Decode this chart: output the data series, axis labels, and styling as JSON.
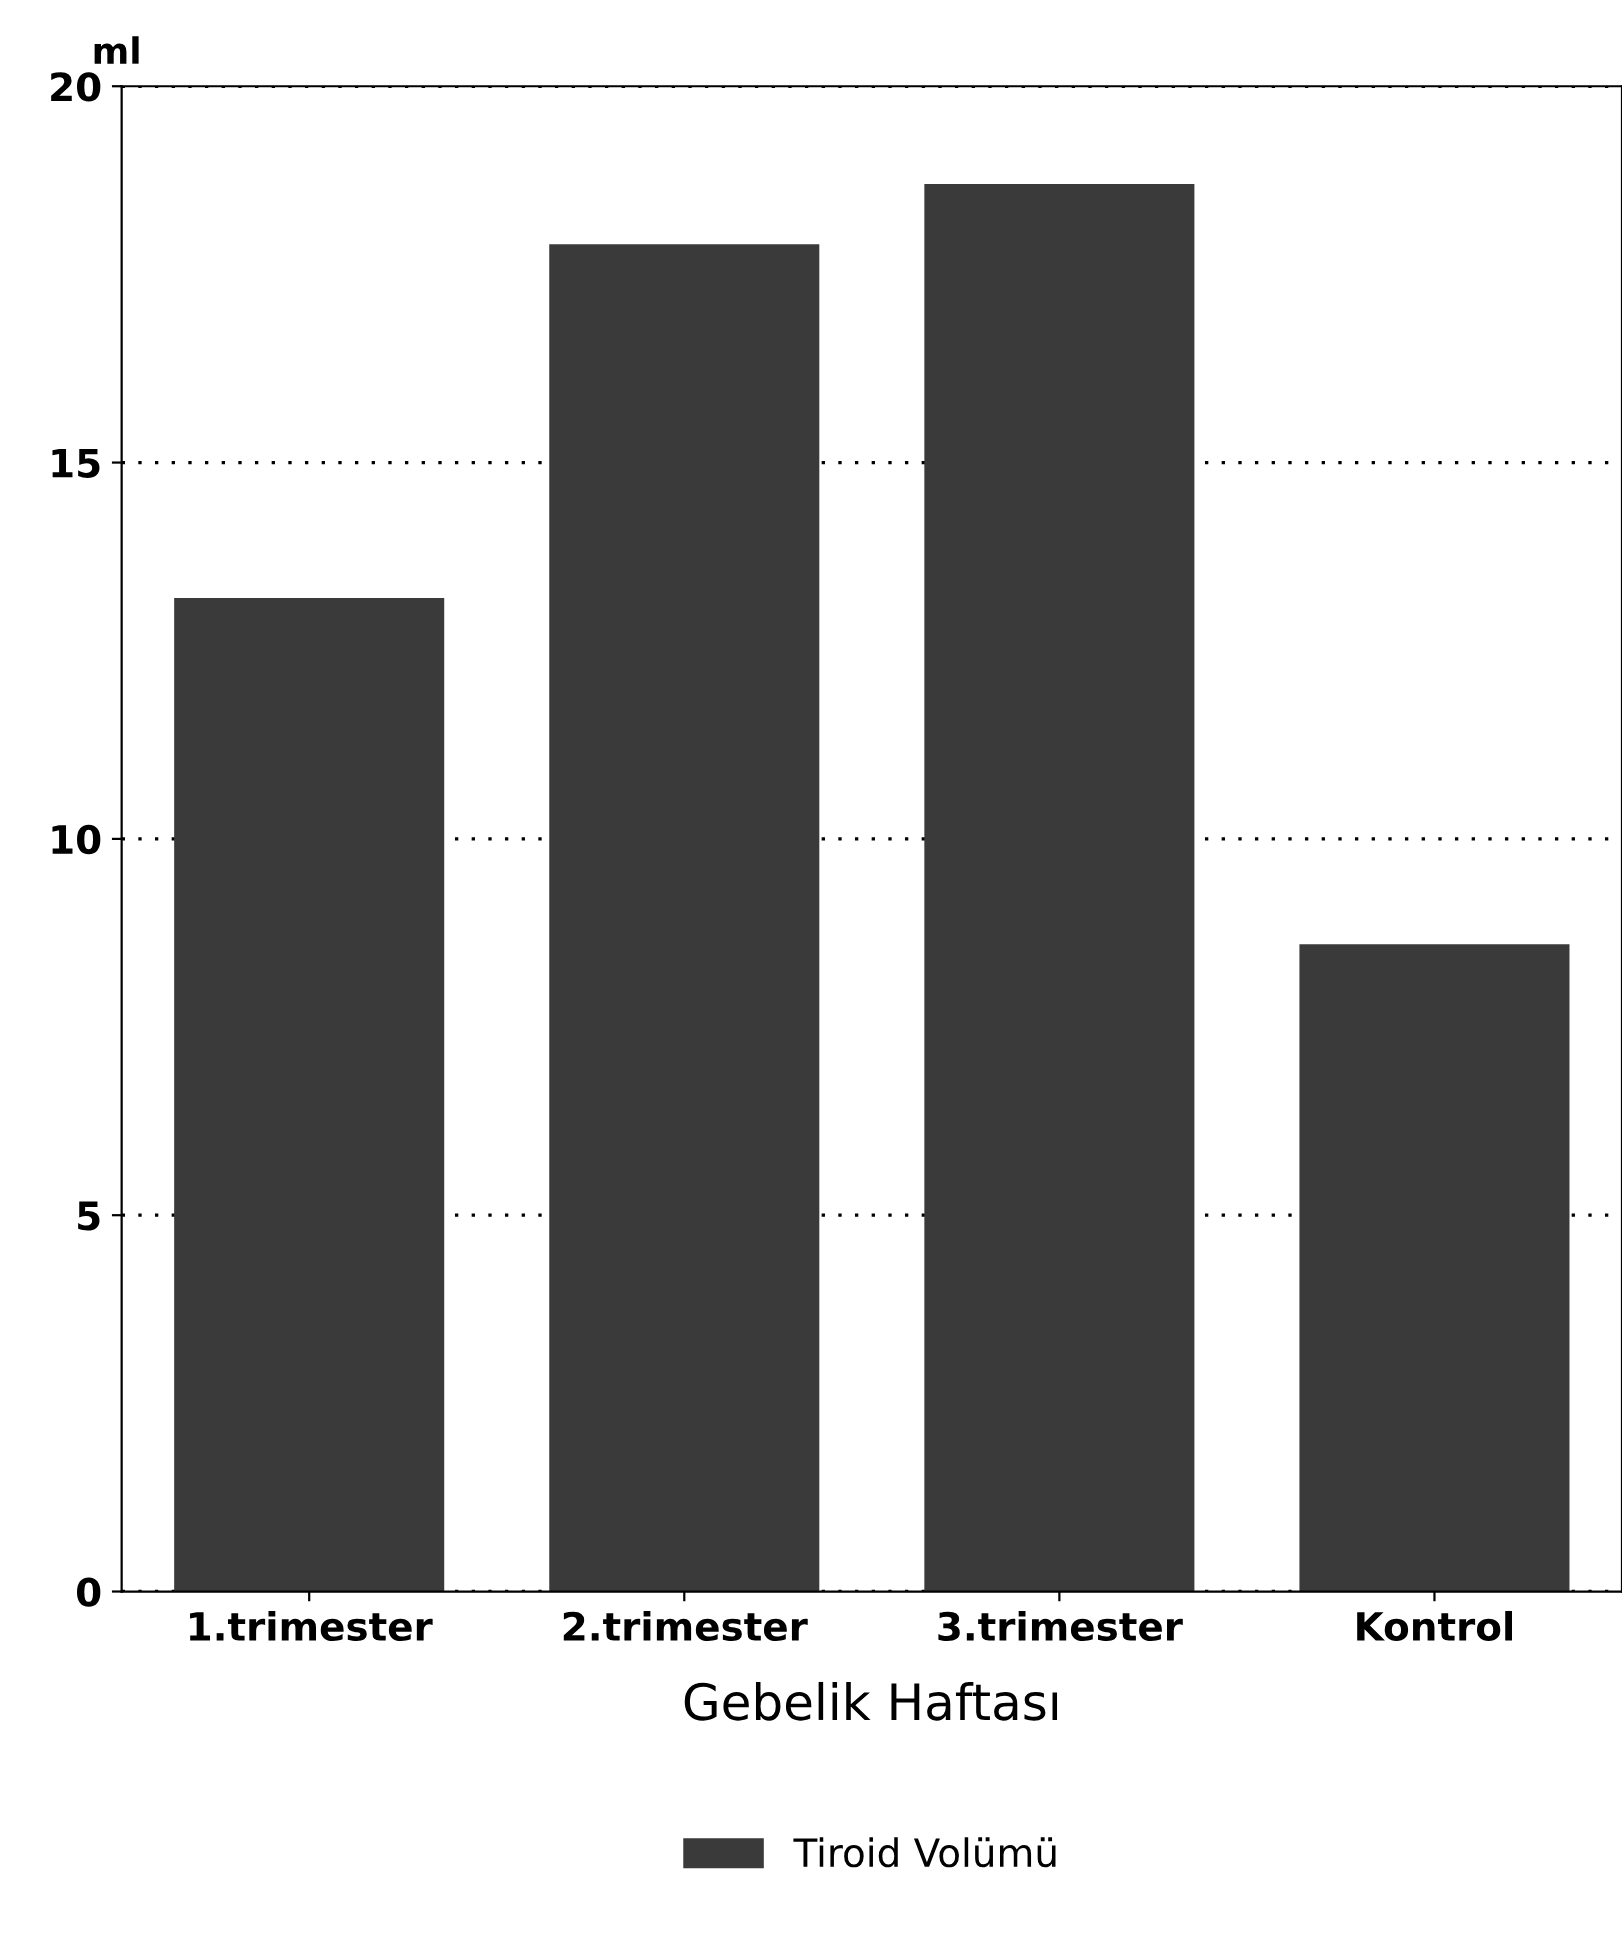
{
  "chart_data": {
    "type": "bar",
    "ylabel": "ml",
    "xlabel": "Gebelik Haftası",
    "categories": [
      "1.trimester",
      "2.trimester",
      "3.trimester",
      "Kontrol"
    ],
    "series": [
      {
        "name": "Tiroid Volümü",
        "color": "#3a3a3a",
        "values": [
          13.2,
          17.9,
          18.7,
          8.6
        ]
      }
    ],
    "ylim": [
      0,
      20
    ],
    "yticks": [
      0,
      5,
      10,
      15,
      20
    ],
    "grid": "y",
    "legend": "bottom"
  }
}
